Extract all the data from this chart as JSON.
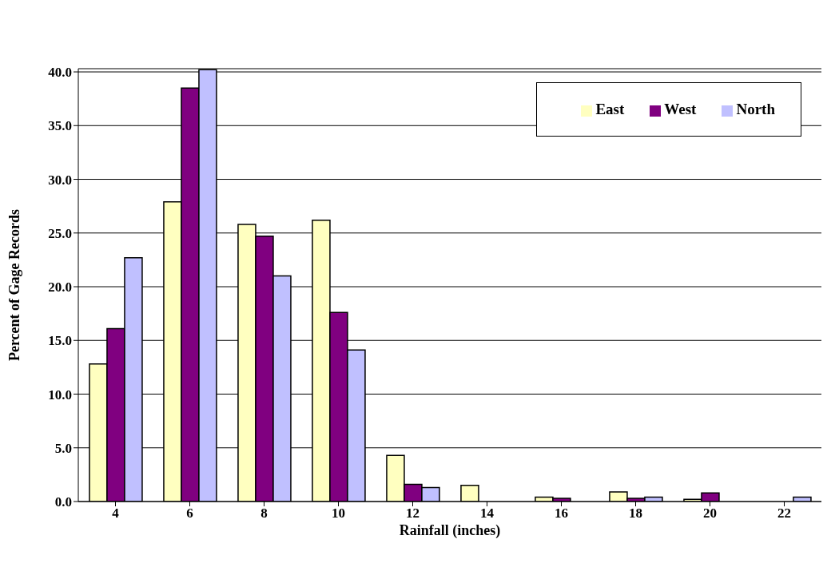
{
  "chart_data": {
    "type": "bar",
    "xlabel": "Rainfall (inches)",
    "ylabel": "Percent of Gage Records",
    "categories": [
      "4",
      "6",
      "8",
      "10",
      "12",
      "14",
      "16",
      "18",
      "20",
      "22"
    ],
    "series": [
      {
        "name": "East",
        "color": "#ffffc0",
        "values": [
          12.8,
          27.9,
          25.8,
          26.2,
          4.3,
          1.5,
          0.4,
          0.9,
          0.2,
          0
        ]
      },
      {
        "name": "West",
        "color": "#800080",
        "values": [
          16.1,
          38.5,
          24.7,
          17.6,
          1.6,
          0,
          0.3,
          0.3,
          0.8,
          0
        ]
      },
      {
        "name": "North",
        "color": "#c0c0ff",
        "values": [
          22.7,
          40.2,
          21.0,
          14.1,
          1.3,
          0,
          0,
          0.4,
          0,
          0.4
        ]
      }
    ],
    "ylim": [
      0,
      40.3
    ],
    "yticks": [
      {
        "value": 0,
        "label": "0.0"
      },
      {
        "value": 5,
        "label": "5.0"
      },
      {
        "value": 10,
        "label": "10.0"
      },
      {
        "value": 15,
        "label": "15.0"
      },
      {
        "value": 20,
        "label": "20.0"
      },
      {
        "value": 25,
        "label": "25.0"
      },
      {
        "value": 30,
        "label": "30.0"
      },
      {
        "value": 35,
        "label": "35.0"
      },
      {
        "value": 40,
        "label": "40.0"
      }
    ],
    "grid": "y",
    "legend": "top right"
  }
}
